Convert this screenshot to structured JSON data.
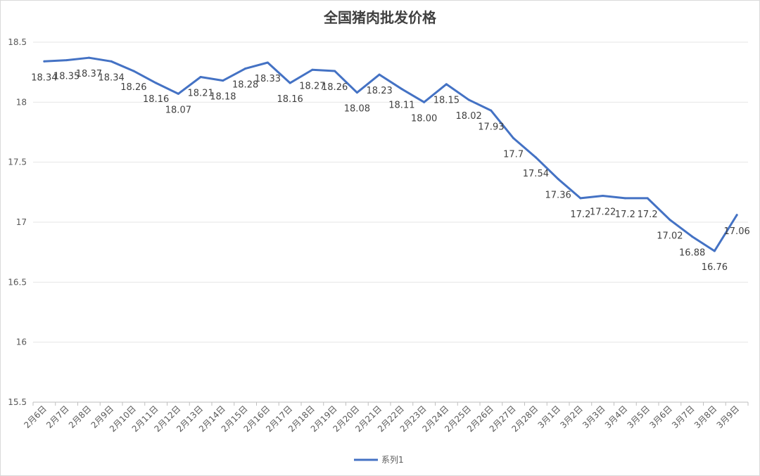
{
  "chart_data": {
    "type": "line",
    "title": "全国猪肉批发价格",
    "xlabel": "",
    "ylabel": "",
    "ylim": [
      15.5,
      18.5
    ],
    "yticks": [
      "18.5",
      "18",
      "17.5",
      "17",
      "16.5",
      "16",
      "15.5"
    ],
    "grid": true,
    "legend_position": "bottom",
    "series_color": "#4472C4",
    "categories": [
      "2月6日",
      "2月7日",
      "2月8日",
      "2月9日",
      "2月10日",
      "2月11日",
      "2月12日",
      "2月13日",
      "2月14日",
      "2月15日",
      "2月16日",
      "2月17日",
      "2月18日",
      "2月19日",
      "2月20日",
      "2月21日",
      "2月22日",
      "2月23日",
      "2月24日",
      "2月25日",
      "2月26日",
      "2月27日",
      "2月28日",
      "3月1日",
      "3月2日",
      "3月3日",
      "3月4日",
      "3月5日",
      "3月6日",
      "3月7日",
      "3月8日",
      "3月9日"
    ],
    "series": [
      {
        "name": "系列1",
        "values": [
          18.34,
          18.35,
          18.37,
          18.34,
          18.26,
          18.16,
          18.07,
          18.21,
          18.18,
          18.28,
          18.33,
          18.16,
          18.27,
          18.26,
          18.08,
          18.23,
          18.11,
          18.0,
          18.15,
          18.02,
          17.93,
          17.7,
          17.54,
          17.36,
          17.2,
          17.22,
          17.2,
          17.2,
          17.02,
          16.88,
          16.76,
          17.06
        ],
        "data_labels": [
          "18.34",
          "18.35",
          "18.37",
          "18.34",
          "18.26",
          "18.16",
          "18.07",
          "18.21",
          "18.18",
          "18.28",
          "18.33",
          "18.16",
          "18.27",
          "18.26",
          "18.08",
          "18.23",
          "18.11",
          "18.00",
          "18.15",
          "18.02",
          "17.93",
          "17.7",
          "17.54",
          "17.36",
          "17.2",
          "17.22",
          "17.2",
          "17.2",
          "17.02",
          "16.88",
          "16.76",
          "17.06"
        ]
      }
    ]
  }
}
